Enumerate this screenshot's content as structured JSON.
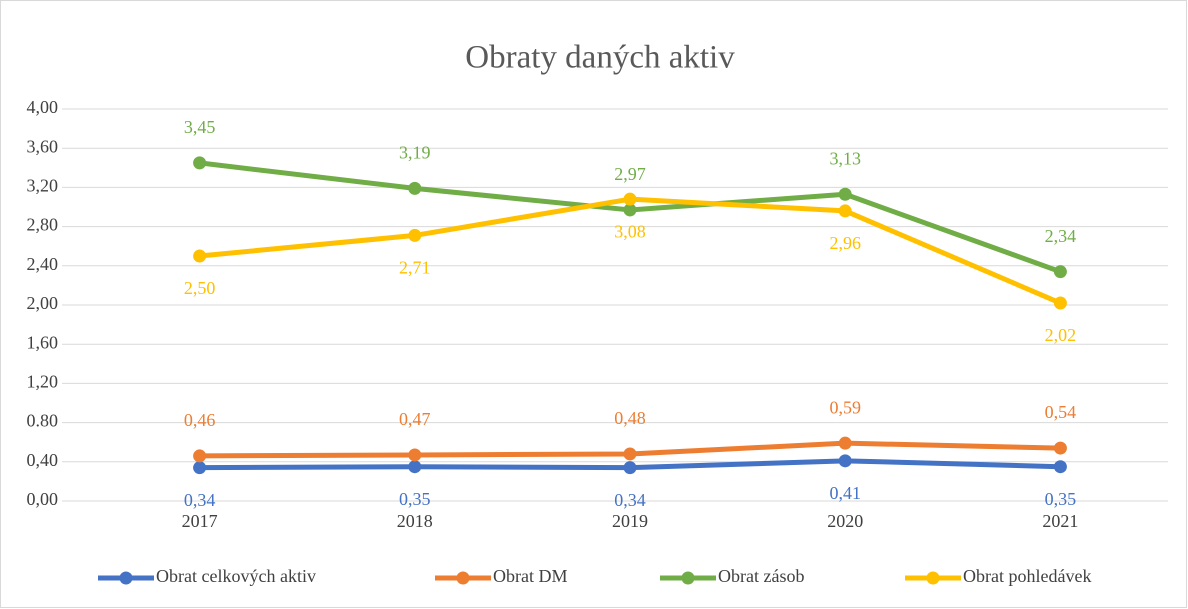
{
  "chart_data": {
    "type": "line",
    "title": "Obraty daných aktiv",
    "categories": [
      "2017",
      "2018",
      "2019",
      "2020",
      "2021"
    ],
    "series": [
      {
        "name": "Obrat celkových aktiv",
        "color": "#4472c4",
        "values": [
          0.34,
          0.35,
          0.34,
          0.41,
          0.35
        ],
        "value_labels": [
          "0,34",
          "0,35",
          "0,34",
          "0,41",
          "0,35"
        ]
      },
      {
        "name": "Obrat DM",
        "color": "#ed7d31",
        "values": [
          0.46,
          0.47,
          0.48,
          0.59,
          0.54
        ],
        "value_labels": [
          "0,46",
          "0,47",
          "0,48",
          "0,59",
          "0,54"
        ]
      },
      {
        "name": "Obrat zásob",
        "color": "#70ad47",
        "values": [
          3.45,
          3.19,
          2.97,
          3.13,
          2.34
        ],
        "value_labels": [
          "3,45",
          "3,19",
          "2,97",
          "3,13",
          "2,34"
        ]
      },
      {
        "name": "Obrat pohledávek",
        "color": "#ffc000",
        "values": [
          2.5,
          2.71,
          3.08,
          2.96,
          2.02
        ],
        "value_labels": [
          "2,50",
          "2,71",
          "3,08",
          "2,96",
          "2,02"
        ]
      }
    ],
    "ylim": [
      0,
      4
    ],
    "yticks": [
      {
        "value": 0,
        "label": "0,00"
      },
      {
        "value": 0.4,
        "label": "0,40"
      },
      {
        "value": 0.8,
        "label": "0.80"
      },
      {
        "value": 1.2,
        "label": "1,20"
      },
      {
        "value": 1.6,
        "label": "1,60"
      },
      {
        "value": 2,
        "label": "2,00"
      },
      {
        "value": 2.4,
        "label": "2,40"
      },
      {
        "value": 2.8,
        "label": "2,80"
      },
      {
        "value": 3.2,
        "label": "3,20"
      },
      {
        "value": 3.6,
        "label": "3,60"
      },
      {
        "value": 4,
        "label": "4,00"
      }
    ],
    "grid": true,
    "legend": "bottom"
  }
}
